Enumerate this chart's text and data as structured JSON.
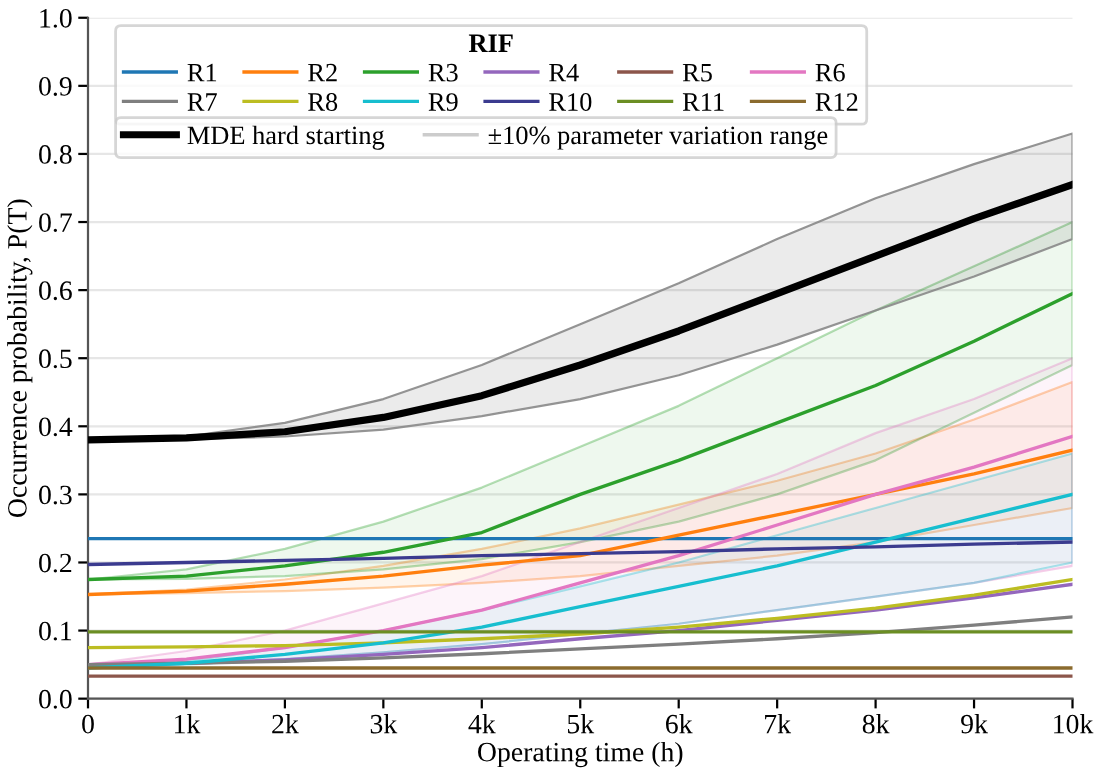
{
  "chart_data": {
    "type": "line",
    "xlabel": "Operating time (h)",
    "ylabel": "Occurrence probability, P(T)",
    "legend_title": "RIF",
    "legend": "top left",
    "grid": "y",
    "line_style": "solid",
    "marker": "none",
    "x": [
      0,
      1000,
      2000,
      3000,
      4000,
      5000,
      6000,
      7000,
      8000,
      9000,
      10000
    ],
    "xlim": [
      0,
      10000
    ],
    "ylim": [
      0,
      1
    ],
    "xticks": [
      0,
      {
        "value": 1000,
        "label": "1k"
      },
      {
        "value": 2000,
        "label": "2k"
      },
      {
        "value": 3000,
        "label": "3k"
      },
      {
        "value": 4000,
        "label": "4k"
      },
      {
        "value": 5000,
        "label": "5k"
      },
      {
        "value": 6000,
        "label": "6k"
      },
      {
        "value": 7000,
        "label": "7k"
      },
      {
        "value": 8000,
        "label": "8k"
      },
      {
        "value": 9000,
        "label": "9k"
      },
      {
        "value": 10000,
        "label": "10k"
      }
    ],
    "yticks": [
      {
        "value": 0,
        "label": "0.0"
      },
      0.1,
      0.2,
      0.3,
      0.4,
      0.5,
      0.6,
      0.7,
      0.8,
      0.9,
      {
        "value": 1,
        "label": "1.0"
      }
    ],
    "annotations": [
      "±10% parameter variation range"
    ],
    "series": [
      {
        "name": "R1",
        "color": "#1f77b4",
        "values": [
          0.235,
          0.235,
          0.235,
          0.235,
          0.235,
          0.235,
          0.235,
          0.235,
          0.235,
          0.235,
          0.235
        ]
      },
      {
        "name": "R2",
        "color": "#ff7f0e",
        "values": [
          0.153,
          0.158,
          0.168,
          0.18,
          0.196,
          0.21,
          0.24,
          0.27,
          0.3,
          0.33,
          0.365
        ],
        "lower": [
          0.153,
          0.155,
          0.158,
          0.163,
          0.17,
          0.18,
          0.195,
          0.21,
          0.23,
          0.255,
          0.28
        ],
        "upper": [
          0.153,
          0.16,
          0.175,
          0.195,
          0.22,
          0.25,
          0.285,
          0.32,
          0.36,
          0.41,
          0.465
        ]
      },
      {
        "name": "R3",
        "color": "#2ca02c",
        "values": [
          0.175,
          0.18,
          0.195,
          0.215,
          0.244,
          0.3,
          0.35,
          0.405,
          0.46,
          0.525,
          0.595
        ],
        "lower": [
          0.175,
          0.176,
          0.18,
          0.19,
          0.205,
          0.23,
          0.26,
          0.3,
          0.35,
          0.42,
          0.49
        ],
        "upper": [
          0.175,
          0.19,
          0.22,
          0.26,
          0.31,
          0.37,
          0.43,
          0.5,
          0.57,
          0.635,
          0.7
        ]
      },
      {
        "name": "R4",
        "color": "#9467bd",
        "values": [
          0.05,
          0.052,
          0.057,
          0.065,
          0.075,
          0.088,
          0.1,
          0.115,
          0.13,
          0.148,
          0.168
        ]
      },
      {
        "name": "R5",
        "color": "#8c564b",
        "values": [
          0.033,
          0.033,
          0.033,
          0.033,
          0.033,
          0.033,
          0.033,
          0.033,
          0.033,
          0.033,
          0.033
        ]
      },
      {
        "name": "R6",
        "color": "#e377c2",
        "values": [
          0.05,
          0.058,
          0.075,
          0.1,
          0.13,
          0.17,
          0.21,
          0.255,
          0.3,
          0.34,
          0.385
        ],
        "lower": [
          0.05,
          0.052,
          0.058,
          0.068,
          0.08,
          0.095,
          0.11,
          0.13,
          0.15,
          0.17,
          0.195
        ],
        "upper": [
          0.05,
          0.07,
          0.1,
          0.14,
          0.18,
          0.23,
          0.28,
          0.33,
          0.39,
          0.44,
          0.5
        ]
      },
      {
        "name": "R7",
        "color": "#7f7f7f",
        "values": [
          0.05,
          0.052,
          0.055,
          0.06,
          0.066,
          0.073,
          0.08,
          0.088,
          0.097,
          0.108,
          0.12
        ]
      },
      {
        "name": "R8",
        "color": "#bcbd22",
        "values": [
          0.075,
          0.076,
          0.078,
          0.082,
          0.088,
          0.095,
          0.105,
          0.118,
          0.133,
          0.152,
          0.175
        ]
      },
      {
        "name": "R9",
        "color": "#17becf",
        "values": [
          0.045,
          0.052,
          0.065,
          0.082,
          0.105,
          0.135,
          0.165,
          0.195,
          0.23,
          0.265,
          0.3
        ],
        "lower": [
          0.045,
          0.05,
          0.058,
          0.068,
          0.08,
          0.095,
          0.11,
          0.13,
          0.15,
          0.17,
          0.2
        ],
        "upper": [
          0.045,
          0.055,
          0.075,
          0.1,
          0.13,
          0.165,
          0.2,
          0.24,
          0.28,
          0.32,
          0.36
        ]
      },
      {
        "name": "R10",
        "color": "#3b3b8f",
        "values": [
          0.197,
          0.2,
          0.203,
          0.206,
          0.21,
          0.213,
          0.216,
          0.22,
          0.223,
          0.227,
          0.23
        ]
      },
      {
        "name": "R11",
        "color": "#6b8e23",
        "values": [
          0.098,
          0.098,
          0.098,
          0.098,
          0.098,
          0.098,
          0.098,
          0.098,
          0.098,
          0.098,
          0.098
        ]
      },
      {
        "name": "R12",
        "color": "#8b6b2e",
        "values": [
          0.045,
          0.045,
          0.045,
          0.045,
          0.045,
          0.045,
          0.045,
          0.045,
          0.045,
          0.045,
          0.045
        ]
      },
      {
        "name": "MDE hard starting",
        "color": "#000000",
        "values": [
          0.38,
          0.383,
          0.392,
          0.413,
          0.445,
          0.49,
          0.54,
          0.595,
          0.65,
          0.705,
          0.755
        ],
        "lower": [
          0.38,
          0.381,
          0.385,
          0.395,
          0.415,
          0.44,
          0.475,
          0.52,
          0.57,
          0.62,
          0.675
        ],
        "upper": [
          0.38,
          0.385,
          0.405,
          0.44,
          0.49,
          0.55,
          0.61,
          0.675,
          0.735,
          0.785,
          0.83
        ]
      }
    ]
  }
}
